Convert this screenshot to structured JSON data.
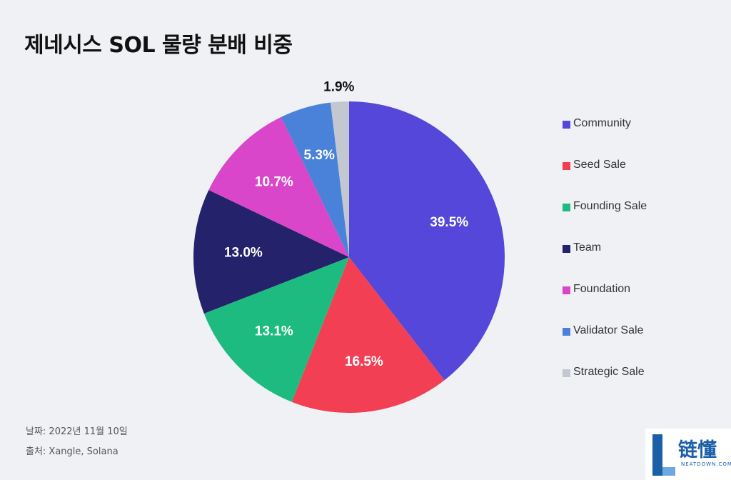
{
  "title": "제네시스 SOL 물량 분배 비중",
  "chart_data": {
    "type": "pie",
    "categories": [
      "Community",
      "Seed Sale",
      "Founding Sale",
      "Team",
      "Foundation",
      "Validator Sale",
      "Strategic Sale"
    ],
    "values": [
      39.5,
      16.5,
      13.1,
      13.0,
      10.7,
      5.3,
      1.9
    ],
    "labels": [
      "39.5%",
      "16.5%",
      "13.1%",
      "13.0%",
      "10.7%",
      "5.3%",
      "1.9%"
    ],
    "colors": [
      "#5447d9",
      "#f23f53",
      "#1dbb7f",
      "#23226a",
      "#d946c9",
      "#4a82d9",
      "#c3c7d1"
    ],
    "legend_position": "right"
  },
  "footer": {
    "date": "날짜: 2022년 11월 10일",
    "source": "출처: Xangle, Solana"
  },
  "logo": {
    "text": "链懂",
    "subtext": "NEATDOWN.COM"
  }
}
